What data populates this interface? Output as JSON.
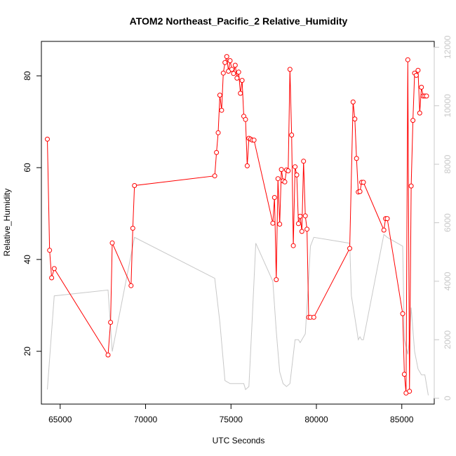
{
  "chart_data": {
    "type": "line",
    "title": "ATOM2 Northeast_Pacific_2 Relative_Humidity",
    "xlabel": "UTC Seconds",
    "ylabel": "Relative_Humidity",
    "xlim": [
      63900,
      86900
    ],
    "ylim": [
      8.5,
      87.5
    ],
    "y2lim": [
      -200,
      12200
    ],
    "x_ticks": [
      65000,
      70000,
      75000,
      80000,
      85000
    ],
    "x_tick_labels": [
      "65000",
      "70000",
      "75000",
      "80000",
      "85000"
    ],
    "y_ticks": [
      20,
      40,
      60,
      80
    ],
    "y_tick_labels": [
      "20",
      "40",
      "60",
      "80"
    ],
    "y2_ticks": [
      0,
      2000,
      4000,
      6000,
      8000,
      10000,
      12000
    ],
    "y2_tick_labels": [
      "0",
      "2000",
      "4000",
      "6000",
      "8000",
      "10000",
      "12000"
    ],
    "grid": false,
    "legend": false,
    "series": [
      {
        "axis": "left",
        "style": "line+markers",
        "color": "#ff0000",
        "x": [
          64250,
          64380,
          64500,
          64650,
          67800,
          67950,
          68050,
          69150,
          69250,
          69350,
          74050,
          74150,
          74250,
          74350,
          74450,
          74550,
          74650,
          74750,
          74850,
          74950,
          75050,
          75150,
          75250,
          75350,
          75450,
          75550,
          75650,
          75750,
          75850,
          75950,
          76050,
          76150,
          76250,
          76350,
          77450,
          77550,
          77650,
          77750,
          77850,
          77950,
          78050,
          78150,
          78250,
          78350,
          78450,
          78550,
          78650,
          78750,
          78850,
          78950,
          79050,
          79150,
          79250,
          79350,
          79450,
          79550,
          79650,
          79850,
          81950,
          82150,
          82250,
          82350,
          82450,
          82550,
          82650,
          82750,
          83950,
          84050,
          84150,
          85050,
          85150,
          85250,
          85350,
          85450,
          85550,
          85650,
          85750,
          85850,
          85950,
          86050,
          86150,
          86250,
          86350,
          86450
        ],
        "y": [
          66.2,
          42.0,
          36.0,
          38.0,
          19.2,
          26.3,
          43.6,
          34.3,
          46.8,
          56.1,
          58.2,
          63.3,
          67.6,
          75.8,
          72.5,
          80.6,
          82.9,
          84.2,
          81.0,
          83.3,
          81.4,
          80.5,
          82.3,
          79.5,
          80.8,
          76.2,
          79.0,
          71.2,
          70.5,
          60.4,
          66.4,
          66.2,
          66.0,
          66.0,
          47.9,
          53.5,
          35.6,
          57.6,
          47.7,
          59.6,
          57.1,
          56.9,
          59.5,
          59.3,
          81.4,
          67.1,
          43.0,
          60.2,
          58.4,
          47.8,
          49.4,
          46.1,
          61.4,
          49.5,
          46.6,
          27.4,
          27.4,
          27.4,
          42.4,
          74.3,
          70.6,
          62.0,
          54.7,
          54.8,
          56.8,
          56.8,
          46.4,
          48.9,
          48.9,
          28.2,
          15.0,
          10.9,
          83.5,
          11.3,
          56.0,
          70.3,
          80.6,
          80.1,
          81.2,
          71.9,
          77.5,
          75.6,
          75.6,
          75.6
        ]
      },
      {
        "axis": "right",
        "style": "line",
        "color": "#c8c8c8",
        "x": [
          64250,
          64650,
          67800,
          68050,
          69350,
          74050,
          74350,
          74650,
          74950,
          75350,
          75650,
          75750,
          75850,
          75950,
          76050,
          76250,
          76450,
          77450,
          77650,
          77750,
          77850,
          78050,
          78250,
          78450,
          78750,
          78950,
          79050,
          79150,
          79350,
          79550,
          79650,
          79850,
          81950,
          82050,
          82350,
          82450,
          82550,
          82650,
          82750,
          83950,
          84150,
          85050,
          85150,
          85350,
          85450,
          85550,
          85750,
          85950,
          86150,
          86350,
          86550
        ],
        "y": [
          300,
          3500,
          3700,
          1600,
          5500,
          4100,
          2600,
          600,
          500,
          500,
          500,
          500,
          300,
          350,
          400,
          2800,
          5300,
          4000,
          2300,
          1600,
          900,
          500,
          400,
          500,
          2000,
          2000,
          1900,
          2000,
          2200,
          4100,
          5200,
          5500,
          5300,
          3500,
          2400,
          2000,
          2100,
          2000,
          2000,
          5600,
          5500,
          5200,
          2000,
          1500,
          2000,
          3100,
          1600,
          1000,
          800,
          800,
          100
        ]
      }
    ]
  }
}
